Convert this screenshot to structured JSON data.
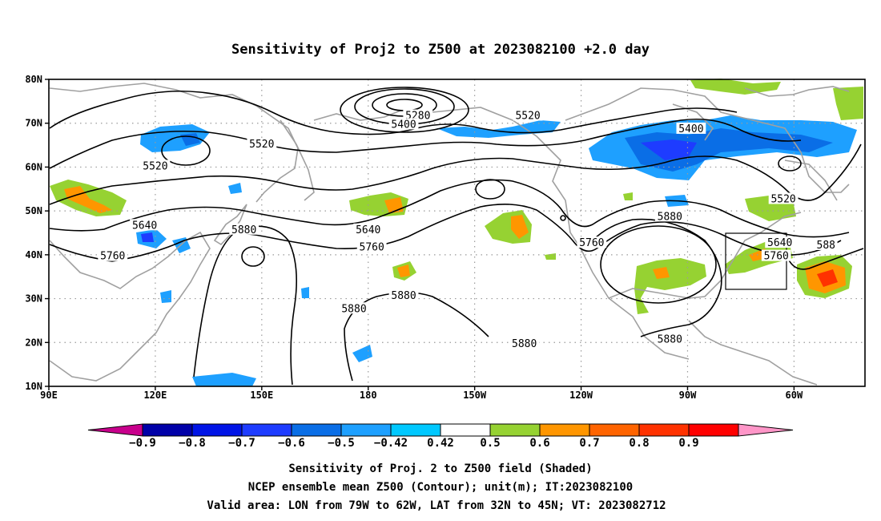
{
  "title": "Sensitivity of Proj2 to Z500 at 2023082100 +2.0 day",
  "lat_ticks": [
    "80N",
    "70N",
    "60N",
    "50N",
    "40N",
    "30N",
    "20N",
    "10N"
  ],
  "lon_ticks": [
    "90E",
    "120E",
    "150E",
    "180",
    "150W",
    "120W",
    "90W",
    "60W"
  ],
  "contour_labels": [
    {
      "text": "5280",
      "lon": 194,
      "lat": 71.5
    },
    {
      "text": "5400",
      "lon": 190,
      "lat": 69.5
    },
    {
      "text": "5520",
      "lon": 225,
      "lat": 71.5
    },
    {
      "text": "5400",
      "lon": 271,
      "lat": 68.5
    },
    {
      "text": "5520",
      "lon": 150,
      "lat": 65.0
    },
    {
      "text": "5520",
      "lon": 120,
      "lat": 60.0
    },
    {
      "text": "5520",
      "lon": 297,
      "lat": 52.5
    },
    {
      "text": "5640",
      "lon": 117,
      "lat": 46.5
    },
    {
      "text": "5640",
      "lon": 180,
      "lat": 45.5
    },
    {
      "text": "5640",
      "lon": 296,
      "lat": 42.5
    },
    {
      "text": "5760",
      "lon": 108,
      "lat": 39.5
    },
    {
      "text": "5760",
      "lon": 181,
      "lat": 41.5
    },
    {
      "text": "5760",
      "lon": 243,
      "lat": 42.5
    },
    {
      "text": "5760",
      "lon": 295,
      "lat": 39.5
    },
    {
      "text": "5880",
      "lon": 145,
      "lat": 45.5
    },
    {
      "text": "5880",
      "lon": 176,
      "lat": 27.5
    },
    {
      "text": "5880",
      "lon": 190,
      "lat": 30.5
    },
    {
      "text": "5880",
      "lon": 224,
      "lat": 19.5
    },
    {
      "text": "5880",
      "lon": 265,
      "lat": 48.5
    },
    {
      "text": "5880",
      "lon": 265,
      "lat": 20.5
    },
    {
      "text": "588",
      "lon": 309,
      "lat": 42.0
    }
  ],
  "colorbar": {
    "labels": [
      "−0.9",
      "−0.8",
      "−0.7",
      "−0.6",
      "−0.5",
      "−0.42",
      "0.42",
      "0.5",
      "0.6",
      "0.7",
      "0.8",
      "0.9"
    ],
    "colors": [
      "#0000a8",
      "#0014e6",
      "#1e3cff",
      "#0a6ee6",
      "#1ea0ff",
      "#00c8ff",
      "#ffffff",
      "#96d232",
      "#ff9600",
      "#ff6400",
      "#ff3200",
      "#ff0000"
    ],
    "low_color": "#c8008c",
    "high_color": "#ff96c8"
  },
  "caption": [
    "Sensitivity of Proj. 2 to Z500 field (Shaded)",
    "NCEP ensemble mean Z500 (Contour); unit(m); IT:2023082100",
    "Valid area: LON from 79W to 62W, LAT from 32N to 45N; VT: 2023082712"
  ],
  "valid_area": {
    "lon_min": -79,
    "lon_max": -62,
    "lat_min": 32,
    "lat_max": 45
  },
  "map_extent": {
    "lon_min": 90,
    "lon_max": 320,
    "lat_min": 10,
    "lat_max": 80
  },
  "colors": {
    "coast": "#a0a0a0",
    "contour": "#000000",
    "grid": "#9a9a9a"
  }
}
